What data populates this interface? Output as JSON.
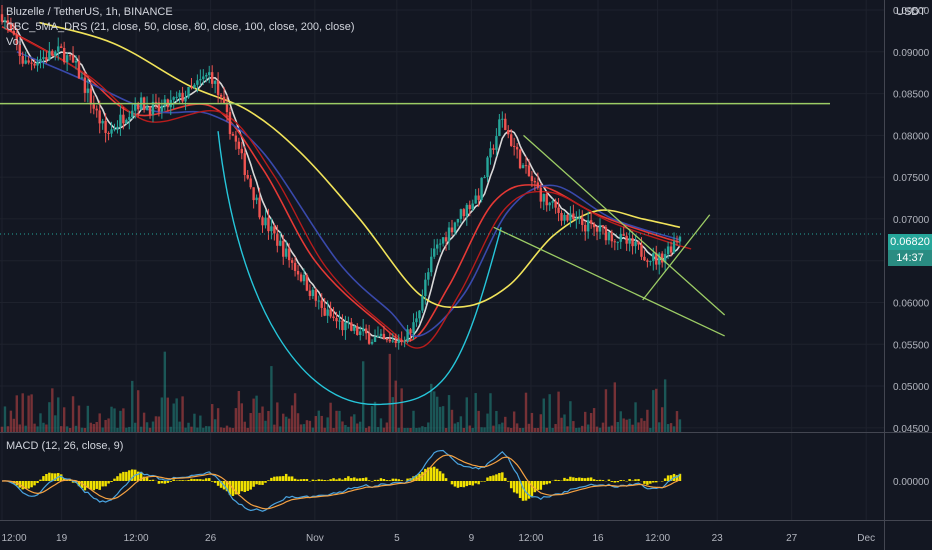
{
  "header": {
    "title": "Bluzelle / TetherUS, 1h, BINANCE",
    "indicator": "CBC_5MA_DRS (21, close, 50, close, 80, close, 100, close, 200, close)",
    "volume_label": "Vol",
    "currency": "USDT",
    "macd_label": "MACD (12, 26, close, 9)"
  },
  "price_badge": {
    "price": "0.06820",
    "countdown": "14:37"
  },
  "colors": {
    "background": "#131722",
    "up": "#26a69a",
    "down": "#ef5350",
    "axis_text": "#b2b5be",
    "ma_white": "#d9d9d9",
    "ma_red": "#e53935",
    "ma_darkred": "#b71c1c",
    "ma_blue": "#3949ab",
    "ma_yellow": "#f1e35a",
    "trend_green": "#9ccc65",
    "cup_cyan": "#26c6da",
    "macd_line": "#4aa3df",
    "macd_signal": "#f5a142",
    "histogram": "#f2e200"
  },
  "chart_data": [
    {
      "type": "candlestick",
      "title": "Bluzelle / TetherUS, 1h, BINANCE",
      "ylabel": "USDT",
      "y_ticks": [
        "0.09500",
        "0.09000",
        "0.08500",
        "0.08000",
        "0.07500",
        "0.07000",
        "0.06500",
        "0.06000",
        "0.05500",
        "0.05000",
        "0.04500"
      ],
      "ylim": [
        0.0445,
        0.0962
      ],
      "x_ticks": [
        "12:00",
        "19",
        "12:00",
        "26",
        "Nov",
        "5",
        "9",
        "12:00",
        "16",
        "12:00",
        "23",
        "27",
        "Dec"
      ],
      "current_price": 0.0682,
      "horizontal_level": 0.0838,
      "price_path": [
        {
          "t": 0,
          "p": 0.0945
        },
        {
          "t": 3,
          "p": 0.0885
        },
        {
          "t": 6,
          "p": 0.0895
        },
        {
          "t": 8,
          "p": 0.09
        },
        {
          "t": 10,
          "p": 0.088
        },
        {
          "t": 14,
          "p": 0.08
        },
        {
          "t": 18,
          "p": 0.084
        },
        {
          "t": 21,
          "p": 0.083
        },
        {
          "t": 25,
          "p": 0.085
        },
        {
          "t": 28,
          "p": 0.0875
        },
        {
          "t": 31,
          "p": 0.08
        },
        {
          "t": 35,
          "p": 0.07
        },
        {
          "t": 38,
          "p": 0.066
        },
        {
          "t": 41,
          "p": 0.062
        },
        {
          "t": 43,
          "p": 0.059
        },
        {
          "t": 46,
          "p": 0.057
        },
        {
          "t": 49,
          "p": 0.056
        },
        {
          "t": 52,
          "p": 0.055
        },
        {
          "t": 55,
          "p": 0.0565
        },
        {
          "t": 58,
          "p": 0.066
        },
        {
          "t": 61,
          "p": 0.07
        },
        {
          "t": 64,
          "p": 0.073
        },
        {
          "t": 67,
          "p": 0.082
        },
        {
          "t": 70,
          "p": 0.076
        },
        {
          "t": 73,
          "p": 0.072
        },
        {
          "t": 76,
          "p": 0.07
        },
        {
          "t": 79,
          "p": 0.069
        },
        {
          "t": 82,
          "p": 0.068
        },
        {
          "t": 85,
          "p": 0.0665
        },
        {
          "t": 88,
          "p": 0.065
        },
        {
          "t": 90,
          "p": 0.067
        },
        {
          "t": 91,
          "p": 0.0682
        }
      ],
      "moving_averages": [
        {
          "name": "MA21",
          "color": "#e53935",
          "points": [
            [
              0,
              0.093
            ],
            [
              10,
              0.088
            ],
            [
              18,
              0.0825
            ],
            [
              28,
              0.0835
            ],
            [
              35,
              0.076
            ],
            [
              42,
              0.065
            ],
            [
              50,
              0.058
            ],
            [
              55,
              0.0555
            ],
            [
              60,
              0.062
            ],
            [
              66,
              0.072
            ],
            [
              72,
              0.074
            ],
            [
              80,
              0.0705
            ],
            [
              88,
              0.068
            ],
            [
              91,
              0.0672
            ]
          ]
        },
        {
          "name": "MA50",
          "color": "#3949ab",
          "points": [
            [
              2,
              0.09
            ],
            [
              10,
              0.087
            ],
            [
              20,
              0.083
            ],
            [
              28,
              0.0825
            ],
            [
              35,
              0.078
            ],
            [
              45,
              0.065
            ],
            [
              52,
              0.059
            ],
            [
              56,
              0.056
            ],
            [
              62,
              0.061
            ],
            [
              68,
              0.071
            ],
            [
              74,
              0.074
            ],
            [
              82,
              0.07
            ],
            [
              91,
              0.0675
            ]
          ]
        },
        {
          "name": "MA200",
          "color": "#f1e35a",
          "points": [
            [
              5,
              0.0935
            ],
            [
              15,
              0.091
            ],
            [
              25,
              0.086
            ],
            [
              33,
              0.083
            ],
            [
              40,
              0.078
            ],
            [
              48,
              0.07
            ],
            [
              56,
              0.061
            ],
            [
              62,
              0.0595
            ],
            [
              68,
              0.062
            ],
            [
              74,
              0.068
            ],
            [
              80,
              0.071
            ],
            [
              86,
              0.07
            ],
            [
              91,
              0.069
            ]
          ]
        }
      ],
      "drawings": [
        {
          "type": "trendline",
          "from": [
            70,
            0.08
          ],
          "to": [
            97,
            0.0585
          ]
        },
        {
          "type": "trendline",
          "from": [
            66,
            0.069
          ],
          "to": [
            97,
            0.056
          ]
        },
        {
          "type": "trendline",
          "from": [
            86,
            0.0603
          ],
          "to": [
            95,
            0.0705
          ]
        },
        {
          "type": "cup_arc",
          "from": [
            29,
            0.0805
          ],
          "bottom": [
            50,
            0.0478
          ],
          "to": [
            67,
            0.069
          ]
        }
      ]
    },
    {
      "type": "macd",
      "title": "MACD (12, 26, close, 9)",
      "y_ticks": [
        "0.00000"
      ],
      "series": [
        {
          "name": "MACD",
          "color": "#4aa3df"
        },
        {
          "name": "Signal",
          "color": "#f5a142"
        },
        {
          "name": "Histogram",
          "color": "#f2e200"
        }
      ]
    }
  ]
}
